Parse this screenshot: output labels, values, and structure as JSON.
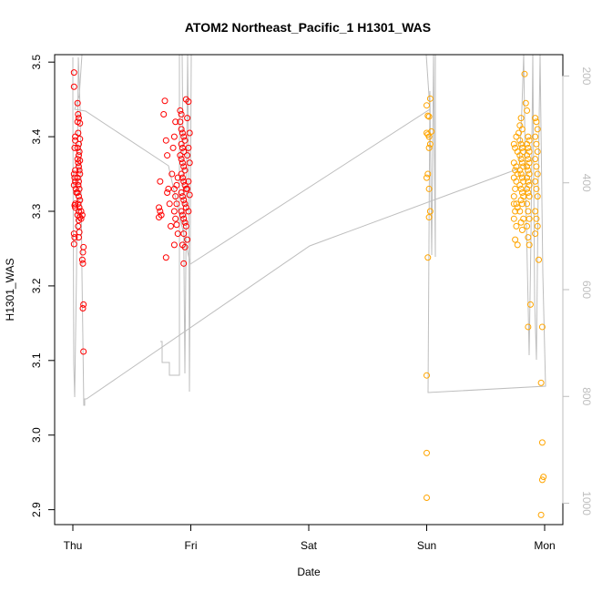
{
  "chart_data": {
    "type": "scatter",
    "title": "ATOM2 Northeast_Pacific_1 H1301_WAS",
    "xlabel": "Date",
    "ylabel": "H1301_WAS",
    "x_ticks": [
      {
        "label": "Thu",
        "day": 0
      },
      {
        "label": "Fri",
        "day": 1
      },
      {
        "label": "Sat",
        "day": 2
      },
      {
        "label": "Sun",
        "day": 3
      },
      {
        "label": "Mon",
        "day": 4
      }
    ],
    "ylim": [
      2.88,
      3.51
    ],
    "y_ticks": [
      2.9,
      3.0,
      3.1,
      3.2,
      3.3,
      3.4,
      3.5
    ],
    "right_axis": {
      "ylim": [
        1040,
        160
      ],
      "ticks": [
        200,
        400,
        600,
        800,
        1000
      ],
      "color": "#bebebe"
    },
    "colors": {
      "series_red": "#ff0000",
      "series_orange": "#ffa500",
      "profile_line": "#bebebe"
    },
    "series": [
      {
        "color": "#ff0000",
        "points": [
          [
            0.01,
            3.486
          ],
          [
            0.01,
            3.467
          ],
          [
            0.02,
            3.4
          ],
          [
            0.02,
            3.395
          ],
          [
            0.015,
            3.385
          ],
          [
            0.02,
            3.355
          ],
          [
            0.01,
            3.35
          ],
          [
            0.015,
            3.345
          ],
          [
            0.02,
            3.34
          ],
          [
            0.01,
            3.335
          ],
          [
            0.02,
            3.31
          ],
          [
            0.015,
            3.308
          ],
          [
            0.02,
            3.305
          ],
          [
            0.01,
            3.27
          ],
          [
            0.015,
            3.265
          ],
          [
            0.01,
            3.256
          ],
          [
            0.025,
            3.33
          ],
          [
            0.03,
            3.325
          ],
          [
            0.04,
            3.445
          ],
          [
            0.045,
            3.43
          ],
          [
            0.05,
            3.425
          ],
          [
            0.04,
            3.42
          ],
          [
            0.06,
            3.418
          ],
          [
            0.045,
            3.405
          ],
          [
            0.06,
            3.397
          ],
          [
            0.05,
            3.39
          ],
          [
            0.04,
            3.385
          ],
          [
            0.055,
            3.38
          ],
          [
            0.05,
            3.375
          ],
          [
            0.04,
            3.37
          ],
          [
            0.06,
            3.368
          ],
          [
            0.045,
            3.365
          ],
          [
            0.05,
            3.36
          ],
          [
            0.055,
            3.355
          ],
          [
            0.06,
            3.35
          ],
          [
            0.04,
            3.345
          ],
          [
            0.05,
            3.34
          ],
          [
            0.045,
            3.335
          ],
          [
            0.055,
            3.33
          ],
          [
            0.04,
            3.325
          ],
          [
            0.05,
            3.32
          ],
          [
            0.06,
            3.315
          ],
          [
            0.045,
            3.31
          ],
          [
            0.055,
            3.305
          ],
          [
            0.05,
            3.3
          ],
          [
            0.04,
            3.295
          ],
          [
            0.06,
            3.292
          ],
          [
            0.05,
            3.288
          ],
          [
            0.045,
            3.28
          ],
          [
            0.055,
            3.272
          ],
          [
            0.05,
            3.265
          ],
          [
            0.07,
            3.3
          ],
          [
            0.08,
            3.295
          ],
          [
            0.07,
            3.29
          ],
          [
            0.09,
            3.252
          ],
          [
            0.085,
            3.245
          ],
          [
            0.08,
            3.235
          ],
          [
            0.085,
            3.23
          ],
          [
            0.09,
            3.175
          ],
          [
            0.085,
            3.17
          ],
          [
            0.09,
            3.112
          ],
          [
            0.74,
            3.34
          ],
          [
            0.73,
            3.305
          ],
          [
            0.74,
            3.3
          ],
          [
            0.75,
            3.295
          ],
          [
            0.73,
            3.292
          ],
          [
            0.78,
            3.448
          ],
          [
            0.77,
            3.43
          ],
          [
            0.79,
            3.395
          ],
          [
            0.8,
            3.375
          ],
          [
            0.81,
            3.33
          ],
          [
            0.8,
            3.325
          ],
          [
            0.82,
            3.31
          ],
          [
            0.83,
            3.28
          ],
          [
            0.79,
            3.238
          ],
          [
            0.85,
            3.385
          ],
          [
            0.84,
            3.35
          ],
          [
            0.87,
            3.42
          ],
          [
            0.86,
            3.4
          ],
          [
            0.89,
            3.345
          ],
          [
            0.88,
            3.335
          ],
          [
            0.86,
            3.33
          ],
          [
            0.87,
            3.32
          ],
          [
            0.88,
            3.31
          ],
          [
            0.86,
            3.3
          ],
          [
            0.87,
            3.29
          ],
          [
            0.88,
            3.282
          ],
          [
            0.89,
            3.27
          ],
          [
            0.86,
            3.255
          ],
          [
            0.91,
            3.435
          ],
          [
            0.92,
            3.43
          ],
          [
            0.91,
            3.42
          ],
          [
            0.92,
            3.41
          ],
          [
            0.93,
            3.405
          ],
          [
            0.94,
            3.4
          ],
          [
            0.95,
            3.395
          ],
          [
            0.92,
            3.39
          ],
          [
            0.93,
            3.385
          ],
          [
            0.94,
            3.38
          ],
          [
            0.91,
            3.375
          ],
          [
            0.92,
            3.37
          ],
          [
            0.93,
            3.365
          ],
          [
            0.94,
            3.36
          ],
          [
            0.95,
            3.355
          ],
          [
            0.92,
            3.35
          ],
          [
            0.93,
            3.345
          ],
          [
            0.94,
            3.34
          ],
          [
            0.95,
            3.335
          ],
          [
            0.96,
            3.33
          ],
          [
            0.92,
            3.325
          ],
          [
            0.93,
            3.32
          ],
          [
            0.94,
            3.315
          ],
          [
            0.95,
            3.31
          ],
          [
            0.96,
            3.305
          ],
          [
            0.92,
            3.3
          ],
          [
            0.93,
            3.295
          ],
          [
            0.94,
            3.29
          ],
          [
            0.95,
            3.285
          ],
          [
            0.96,
            3.28
          ],
          [
            0.94,
            3.27
          ],
          [
            0.93,
            3.255
          ],
          [
            0.95,
            3.252
          ],
          [
            0.97,
            3.262
          ],
          [
            0.94,
            3.23
          ],
          [
            0.96,
            3.45
          ],
          [
            0.98,
            3.447
          ],
          [
            0.97,
            3.425
          ],
          [
            0.99,
            3.405
          ],
          [
            0.98,
            3.385
          ],
          [
            0.97,
            3.375
          ],
          [
            0.99,
            3.365
          ],
          [
            0.98,
            3.34
          ],
          [
            0.97,
            3.33
          ],
          [
            0.99,
            3.322
          ],
          [
            0.98,
            3.3
          ]
        ]
      },
      {
        "color": "#ffa500",
        "points": [
          [
            3.0,
            3.442
          ],
          [
            3.01,
            3.428
          ],
          [
            3.02,
            3.427
          ],
          [
            3.03,
            3.451
          ],
          [
            3.0,
            3.405
          ],
          [
            3.01,
            3.403
          ],
          [
            3.02,
            3.4
          ],
          [
            3.04,
            3.407
          ],
          [
            3.03,
            3.39
          ],
          [
            3.02,
            3.385
          ],
          [
            3.01,
            3.35
          ],
          [
            3.0,
            3.345
          ],
          [
            3.02,
            3.33
          ],
          [
            3.03,
            3.3
          ],
          [
            3.02,
            3.292
          ],
          [
            3.01,
            3.238
          ],
          [
            3.0,
            3.08
          ],
          [
            3.0,
            2.976
          ],
          [
            3.0,
            2.916
          ],
          [
            3.74,
            3.39
          ],
          [
            3.75,
            3.385
          ],
          [
            3.76,
            3.4
          ],
          [
            3.77,
            3.38
          ],
          [
            3.74,
            3.365
          ],
          [
            3.76,
            3.36
          ],
          [
            3.75,
            3.355
          ],
          [
            3.77,
            3.35
          ],
          [
            3.74,
            3.345
          ],
          [
            3.76,
            3.34
          ],
          [
            3.75,
            3.33
          ],
          [
            3.74,
            3.32
          ],
          [
            3.76,
            3.31
          ],
          [
            3.77,
            3.305
          ],
          [
            3.75,
            3.3
          ],
          [
            3.74,
            3.29
          ],
          [
            3.76,
            3.28
          ],
          [
            3.75,
            3.262
          ],
          [
            3.77,
            3.255
          ],
          [
            3.74,
            3.31
          ],
          [
            3.78,
            3.405
          ],
          [
            3.79,
            3.415
          ],
          [
            3.8,
            3.425
          ],
          [
            3.81,
            3.41
          ],
          [
            3.79,
            3.395
          ],
          [
            3.8,
            3.39
          ],
          [
            3.81,
            3.385
          ],
          [
            3.82,
            3.38
          ],
          [
            3.79,
            3.375
          ],
          [
            3.8,
            3.37
          ],
          [
            3.81,
            3.365
          ],
          [
            3.82,
            3.36
          ],
          [
            3.79,
            3.355
          ],
          [
            3.8,
            3.35
          ],
          [
            3.81,
            3.345
          ],
          [
            3.82,
            3.34
          ],
          [
            3.79,
            3.335
          ],
          [
            3.8,
            3.33
          ],
          [
            3.81,
            3.325
          ],
          [
            3.82,
            3.32
          ],
          [
            3.8,
            3.315
          ],
          [
            3.81,
            3.31
          ],
          [
            3.79,
            3.3
          ],
          [
            3.82,
            3.29
          ],
          [
            3.8,
            3.285
          ],
          [
            3.81,
            3.275
          ],
          [
            3.83,
            3.484
          ],
          [
            3.84,
            3.445
          ],
          [
            3.85,
            3.435
          ],
          [
            3.86,
            3.4
          ],
          [
            3.87,
            3.395
          ],
          [
            3.85,
            3.39
          ],
          [
            3.86,
            3.385
          ],
          [
            3.87,
            3.38
          ],
          [
            3.85,
            3.375
          ],
          [
            3.86,
            3.37
          ],
          [
            3.87,
            3.365
          ],
          [
            3.85,
            3.36
          ],
          [
            3.86,
            3.355
          ],
          [
            3.87,
            3.35
          ],
          [
            3.85,
            3.345
          ],
          [
            3.86,
            3.34
          ],
          [
            3.87,
            3.335
          ],
          [
            3.85,
            3.33
          ],
          [
            3.86,
            3.325
          ],
          [
            3.87,
            3.32
          ],
          [
            3.85,
            3.31
          ],
          [
            3.86,
            3.3
          ],
          [
            3.87,
            3.29
          ],
          [
            3.85,
            3.28
          ],
          [
            3.86,
            3.265
          ],
          [
            3.87,
            3.255
          ],
          [
            3.88,
            3.175
          ],
          [
            3.86,
            3.145
          ],
          [
            3.92,
            3.425
          ],
          [
            3.93,
            3.42
          ],
          [
            3.94,
            3.41
          ],
          [
            3.92,
            3.4
          ],
          [
            3.93,
            3.39
          ],
          [
            3.94,
            3.38
          ],
          [
            3.92,
            3.37
          ],
          [
            3.93,
            3.36
          ],
          [
            3.94,
            3.35
          ],
          [
            3.92,
            3.34
          ],
          [
            3.93,
            3.33
          ],
          [
            3.94,
            3.32
          ],
          [
            3.92,
            3.3
          ],
          [
            3.93,
            3.29
          ],
          [
            3.94,
            3.28
          ],
          [
            3.92,
            3.27
          ],
          [
            3.95,
            3.235
          ],
          [
            3.98,
            3.145
          ],
          [
            3.97,
            3.07
          ],
          [
            3.98,
            2.99
          ],
          [
            3.99,
            2.944
          ],
          [
            3.98,
            2.94
          ],
          [
            3.97,
            2.893
          ]
        ]
      }
    ]
  }
}
